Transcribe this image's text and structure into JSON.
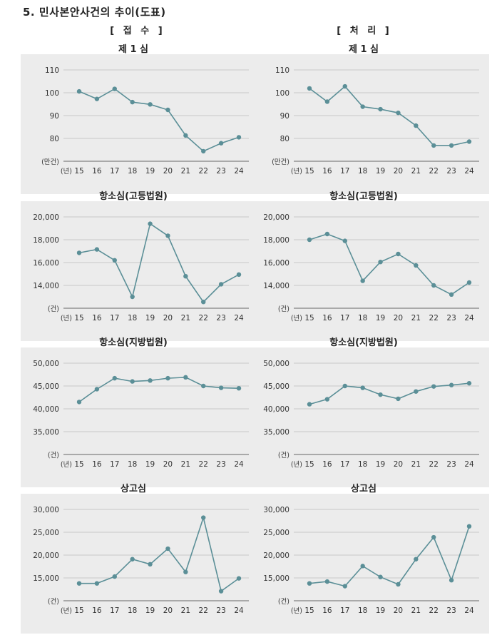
{
  "page": {
    "title": "5. 민사본안사건의 추이(도표)",
    "col_left": "[ 접  수 ]",
    "col_right": "[ 처  리 ]"
  },
  "style": {
    "line_color": "#5b8f97",
    "grid_color": "#c9c9c9",
    "axis_color": "#666666"
  },
  "chart_data": [
    {
      "type": "line",
      "title": "제 1 심",
      "column": "접수",
      "categories": [
        "15",
        "16",
        "17",
        "18",
        "19",
        "20",
        "21",
        "22",
        "23",
        "24"
      ],
      "values": [
        100.6,
        97.3,
        101.7,
        95.9,
        94.9,
        92.5,
        81.3,
        74.4,
        77.9,
        80.5
      ],
      "ylim": [
        70,
        110
      ],
      "yticks": [
        110,
        100,
        90,
        80
      ],
      "ytick_labels": [
        "110",
        "100",
        "90",
        "80"
      ],
      "y_unit": "(만건)",
      "x_unit": "(년)"
    },
    {
      "type": "line",
      "title": "제 1 심",
      "column": "처리",
      "categories": [
        "15",
        "16",
        "17",
        "18",
        "19",
        "20",
        "21",
        "22",
        "23",
        "24"
      ],
      "values": [
        101.9,
        96.1,
        102.8,
        93.9,
        92.8,
        91.2,
        85.6,
        76.9,
        76.9,
        78.6
      ],
      "ylim": [
        70,
        110
      ],
      "yticks": [
        110,
        100,
        90,
        80
      ],
      "ytick_labels": [
        "110",
        "100",
        "90",
        "80"
      ],
      "y_unit": "(만건)",
      "x_unit": "(년)"
    },
    {
      "type": "line",
      "title": "항소심(고등법원)",
      "column": "접수",
      "categories": [
        "15",
        "16",
        "17",
        "18",
        "19",
        "20",
        "21",
        "22",
        "23",
        "24"
      ],
      "values": [
        16850,
        17150,
        16200,
        13000,
        19400,
        18350,
        14800,
        12550,
        14100,
        14950
      ],
      "ylim": [
        12000,
        20000
      ],
      "yticks": [
        20000,
        18000,
        16000,
        14000
      ],
      "ytick_labels": [
        "20,000",
        "18,000",
        "16,000",
        "14,000"
      ],
      "y_unit": "(건)",
      "x_unit": "(년)"
    },
    {
      "type": "line",
      "title": "항소심(고등법원)",
      "column": "처리",
      "categories": [
        "15",
        "16",
        "17",
        "18",
        "19",
        "20",
        "21",
        "22",
        "23",
        "24"
      ],
      "values": [
        18000,
        18500,
        17900,
        14400,
        16050,
        16750,
        15750,
        14000,
        13200,
        14250
      ],
      "ylim": [
        12000,
        20000
      ],
      "yticks": [
        20000,
        18000,
        16000,
        14000
      ],
      "ytick_labels": [
        "20,000",
        "18,000",
        "16,000",
        "14,000"
      ],
      "y_unit": "(건)",
      "x_unit": "(년)"
    },
    {
      "type": "line",
      "title": "항소심(지방법원)",
      "column": "접수",
      "categories": [
        "15",
        "16",
        "17",
        "18",
        "19",
        "20",
        "21",
        "22",
        "23",
        "24"
      ],
      "values": [
        41500,
        44300,
        46700,
        46000,
        46200,
        46700,
        46900,
        45000,
        44600,
        44500
      ],
      "ylim": [
        30000,
        50000
      ],
      "yticks": [
        50000,
        45000,
        40000,
        35000
      ],
      "ytick_labels": [
        "50,000",
        "45,000",
        "40,000",
        "35,000"
      ],
      "y_unit": "(건)",
      "x_unit": "(년)"
    },
    {
      "type": "line",
      "title": "항소심(지방법원)",
      "column": "처리",
      "categories": [
        "15",
        "16",
        "17",
        "18",
        "19",
        "20",
        "21",
        "22",
        "23",
        "24"
      ],
      "values": [
        41000,
        42100,
        45000,
        44600,
        43100,
        42200,
        43800,
        44900,
        45200,
        45600
      ],
      "ylim": [
        30000,
        50000
      ],
      "yticks": [
        50000,
        45000,
        40000,
        35000
      ],
      "ytick_labels": [
        "50,000",
        "45,000",
        "40,000",
        "35,000"
      ],
      "y_unit": "(건)",
      "x_unit": "(년)"
    },
    {
      "type": "line",
      "title": "상고심",
      "column": "접수",
      "categories": [
        "15",
        "16",
        "17",
        "18",
        "19",
        "20",
        "21",
        "22",
        "23",
        "24"
      ],
      "values": [
        13800,
        13800,
        15300,
        19100,
        18000,
        21400,
        16300,
        28200,
        12100,
        14900
      ],
      "ylim": [
        10000,
        30000
      ],
      "yticks": [
        30000,
        25000,
        20000,
        15000
      ],
      "ytick_labels": [
        "30,000",
        "25,000",
        "20,000",
        "15,000"
      ],
      "y_unit": "(건)",
      "x_unit": "(년)"
    },
    {
      "type": "line",
      "title": "상고심",
      "column": "처리",
      "categories": [
        "15",
        "16",
        "17",
        "18",
        "19",
        "20",
        "21",
        "22",
        "23",
        "24"
      ],
      "values": [
        13800,
        14200,
        13200,
        17600,
        15200,
        13600,
        19100,
        23900,
        14500,
        26300
      ],
      "ylim": [
        10000,
        30000
      ],
      "yticks": [
        30000,
        25000,
        20000,
        15000
      ],
      "ytick_labels": [
        "30,000",
        "25,000",
        "20,000",
        "15,000"
      ],
      "y_unit": "(건)",
      "x_unit": "(년)"
    }
  ]
}
